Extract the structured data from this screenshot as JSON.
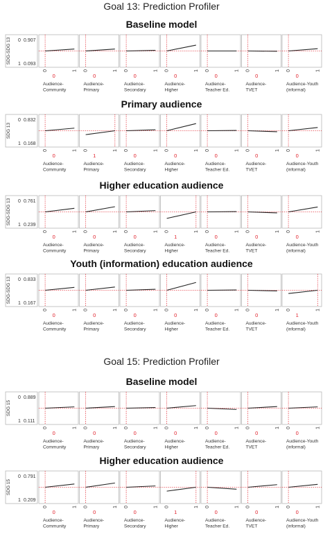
{
  "columns": [
    "Audience-\nCommunity",
    "Audience-\nPrimary",
    "Audience-\nSecondary",
    "Audience-\nHigher",
    "Audience-\nTeacher Ed.",
    "Audience-\nTVET",
    "Audience-Youth\n(informal)"
  ],
  "tick_labels": {
    "x0": "0",
    "x1": "1",
    "y0": "0",
    "y1": "1"
  },
  "colors": {
    "refline": "#e0202a",
    "factor_value": "#e0202a",
    "frame": "#b8b8b8",
    "line": "#222222"
  },
  "goals": [
    {
      "title": "Goal 13: Prediction Profiler",
      "panels": [
        {
          "subtitle": "Baseline model",
          "ylabel": "SDG-SDG 13",
          "ymax": "0.907",
          "ymin": "0.093",
          "settings": [
            "0",
            "0",
            "0",
            "0",
            "0",
            "0",
            "0"
          ]
        },
        {
          "subtitle": "Primary audience",
          "ylabel": "SDG 13",
          "ymax": "0.832",
          "ymin": "0.168",
          "settings": [
            "0",
            "1",
            "0",
            "0",
            "0",
            "0",
            "0"
          ]
        },
        {
          "subtitle": "Higher education audience",
          "ylabel": "SDG-SDG 13",
          "ymax": "0.761",
          "ymin": "0.239",
          "settings": [
            "0",
            "0",
            "0",
            "1",
            "0",
            "0",
            "0"
          ]
        },
        {
          "subtitle": "Youth (information) education audience",
          "ylabel": "SDG-SDG 13",
          "ymax": "0.833",
          "ymin": "0.167",
          "settings": [
            "0",
            "0",
            "0",
            "0",
            "0",
            "0",
            "1"
          ]
        }
      ]
    },
    {
      "title": "Goal 15: Prediction Profiler",
      "panels": [
        {
          "subtitle": "Baseline model",
          "ylabel": "SDG 15",
          "ymax": "0.889",
          "ymin": "0.111",
          "settings": [
            "0",
            "0",
            "0",
            "0",
            "0",
            "0",
            "0"
          ]
        },
        {
          "subtitle": "Higher education audience",
          "ylabel": "SDG 15",
          "ymax": "0.791",
          "ymin": "0.209",
          "settings": [
            "0",
            "0",
            "0",
            "1",
            "0",
            "0",
            "0"
          ]
        }
      ]
    }
  ],
  "chart_data": [
    {
      "type": "line",
      "title": "Goal 13: Prediction Profiler",
      "subtitle": "Baseline model",
      "ylabel": "SDG-SDG 13",
      "ylim": [
        0,
        1
      ],
      "current_prediction": [
        0.093,
        0.907
      ],
      "x": [
        0,
        1
      ],
      "series": [
        {
          "name": "Audience-Community",
          "values": [
            0.5,
            0.56
          ]
        },
        {
          "name": "Audience-Primary",
          "values": [
            0.5,
            0.56
          ]
        },
        {
          "name": "Audience-Secondary",
          "values": [
            0.5,
            0.52
          ]
        },
        {
          "name": "Audience-Higher",
          "values": [
            0.5,
            0.68
          ]
        },
        {
          "name": "Audience-Teacher Ed.",
          "values": [
            0.5,
            0.5
          ]
        },
        {
          "name": "Audience-TVET",
          "values": [
            0.5,
            0.49
          ]
        },
        {
          "name": "Audience-Youth (informal)",
          "values": [
            0.5,
            0.57
          ]
        }
      ]
    },
    {
      "type": "line",
      "title": "Goal 13: Prediction Profiler",
      "subtitle": "Primary audience",
      "ylabel": "SDG 13",
      "ylim": [
        0,
        1
      ],
      "current_prediction": [
        0.168,
        0.832
      ],
      "x": [
        0,
        1
      ],
      "series": [
        {
          "name": "Audience-Community",
          "values": [
            0.5,
            0.58
          ]
        },
        {
          "name": "Audience-Primary",
          "values": [
            0.38,
            0.5
          ]
        },
        {
          "name": "Audience-Secondary",
          "values": [
            0.5,
            0.53
          ]
        },
        {
          "name": "Audience-Higher",
          "values": [
            0.5,
            0.72
          ]
        },
        {
          "name": "Audience-Teacher Ed.",
          "values": [
            0.5,
            0.51
          ]
        },
        {
          "name": "Audience-TVET",
          "values": [
            0.5,
            0.47
          ]
        },
        {
          "name": "Audience-Youth (informal)",
          "values": [
            0.5,
            0.6
          ]
        }
      ]
    },
    {
      "type": "line",
      "title": "Goal 13: Prediction Profiler",
      "subtitle": "Higher education audience",
      "ylabel": "SDG-SDG 13",
      "ylim": [
        0,
        1
      ],
      "current_prediction": [
        0.239,
        0.761
      ],
      "x": [
        0,
        1
      ],
      "series": [
        {
          "name": "Audience-Community",
          "values": [
            0.5,
            0.61
          ]
        },
        {
          "name": "Audience-Primary",
          "values": [
            0.5,
            0.66
          ]
        },
        {
          "name": "Audience-Secondary",
          "values": [
            0.5,
            0.54
          ]
        },
        {
          "name": "Audience-Higher",
          "values": [
            0.3,
            0.5
          ]
        },
        {
          "name": "Audience-Teacher Ed.",
          "values": [
            0.5,
            0.51
          ]
        },
        {
          "name": "Audience-TVET",
          "values": [
            0.5,
            0.47
          ]
        },
        {
          "name": "Audience-Youth (informal)",
          "values": [
            0.5,
            0.65
          ]
        }
      ]
    },
    {
      "type": "line",
      "title": "Goal 13: Prediction Profiler",
      "subtitle": "Youth (information) education audience",
      "ylabel": "SDG-SDG 13",
      "ylim": [
        0,
        1
      ],
      "current_prediction": [
        0.167,
        0.833
      ],
      "x": [
        0,
        1
      ],
      "series": [
        {
          "name": "Audience-Community",
          "values": [
            0.5,
            0.59
          ]
        },
        {
          "name": "Audience-Primary",
          "values": [
            0.5,
            0.6
          ]
        },
        {
          "name": "Audience-Secondary",
          "values": [
            0.5,
            0.53
          ]
        },
        {
          "name": "Audience-Higher",
          "values": [
            0.5,
            0.74
          ]
        },
        {
          "name": "Audience-Teacher Ed.",
          "values": [
            0.5,
            0.51
          ]
        },
        {
          "name": "Audience-TVET",
          "values": [
            0.5,
            0.48
          ]
        },
        {
          "name": "Audience-Youth (informal)",
          "values": [
            0.4,
            0.5
          ]
        }
      ]
    },
    {
      "type": "line",
      "title": "Goal 15: Prediction Profiler",
      "subtitle": "Baseline model",
      "ylabel": "SDG 15",
      "ylim": [
        0,
        1
      ],
      "current_prediction": [
        0.111,
        0.889
      ],
      "x": [
        0,
        1
      ],
      "series": [
        {
          "name": "Audience-Community",
          "values": [
            0.5,
            0.54
          ]
        },
        {
          "name": "Audience-Primary",
          "values": [
            0.5,
            0.55
          ]
        },
        {
          "name": "Audience-Secondary",
          "values": [
            0.5,
            0.52
          ]
        },
        {
          "name": "Audience-Higher",
          "values": [
            0.5,
            0.58
          ]
        },
        {
          "name": "Audience-Teacher Ed.",
          "values": [
            0.5,
            0.46
          ]
        },
        {
          "name": "Audience-TVET",
          "values": [
            0.5,
            0.55
          ]
        },
        {
          "name": "Audience-Youth (informal)",
          "values": [
            0.5,
            0.54
          ]
        }
      ]
    },
    {
      "type": "line",
      "title": "Goal 15: Prediction Profiler",
      "subtitle": "Higher education audience",
      "ylabel": "SDG 15",
      "ylim": [
        0,
        1
      ],
      "current_prediction": [
        0.209,
        0.791
      ],
      "x": [
        0,
        1
      ],
      "series": [
        {
          "name": "Audience-Community",
          "values": [
            0.5,
            0.6
          ]
        },
        {
          "name": "Audience-Primary",
          "values": [
            0.5,
            0.63
          ]
        },
        {
          "name": "Audience-Secondary",
          "values": [
            0.5,
            0.54
          ]
        },
        {
          "name": "Audience-Higher",
          "values": [
            0.38,
            0.5
          ]
        },
        {
          "name": "Audience-Teacher Ed.",
          "values": [
            0.5,
            0.44
          ]
        },
        {
          "name": "Audience-TVET",
          "values": [
            0.5,
            0.58
          ]
        },
        {
          "name": "Audience-Youth (informal)",
          "values": [
            0.5,
            0.59
          ]
        }
      ]
    }
  ]
}
